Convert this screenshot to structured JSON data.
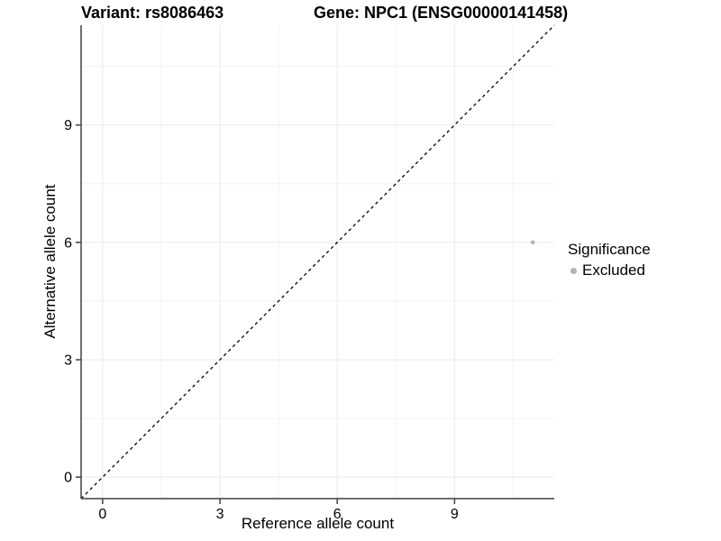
{
  "chart_data": {
    "type": "scatter",
    "title_left": "Variant: rs8086463",
    "title_right": "Gene: NPC1 (ENSG00000141458)",
    "xlabel": "Reference allele count",
    "ylabel": "Alternative allele count",
    "xlim": [
      -0.55,
      11.55
    ],
    "ylim": [
      -0.55,
      11.55
    ],
    "x_ticks": [
      0,
      3,
      6,
      9
    ],
    "y_ticks": [
      0,
      3,
      6,
      9
    ],
    "minor_grid_step": 1.5,
    "grid": "major and minor gridlines on white panel",
    "reference_line": {
      "equation": "y = x",
      "style": "dashed",
      "color": "#000000"
    },
    "series": [
      {
        "name": "Excluded",
        "color": "#b3b3b3",
        "points": [
          {
            "x": 11,
            "y": 6
          }
        ]
      }
    ],
    "legend": {
      "title": "Significance",
      "position": "right",
      "items": [
        {
          "label": "Excluded",
          "color": "#b3b3b3"
        }
      ]
    }
  },
  "colors": {
    "axis_line": "#404040",
    "major_grid": "#e9e9e9",
    "minor_grid": "#f4f4f4",
    "text": "#000000",
    "point": "#b3b3b3"
  }
}
